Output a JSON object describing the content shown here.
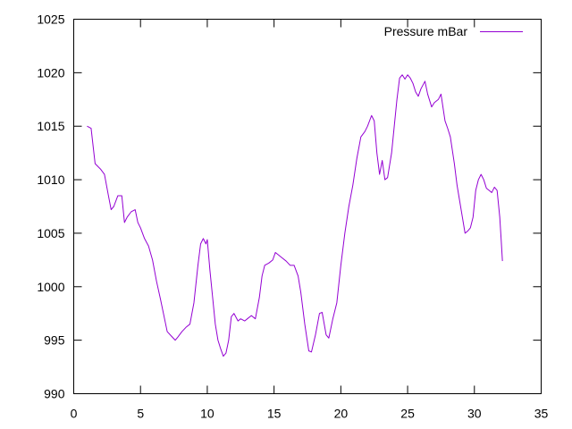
{
  "chart_data": {
    "type": "line",
    "title": "",
    "xlabel": "",
    "ylabel": "",
    "xlim": [
      0,
      35
    ],
    "ylim": [
      990,
      1025
    ],
    "x_ticks": [
      0,
      5,
      10,
      15,
      20,
      25,
      30,
      35
    ],
    "y_ticks": [
      990,
      995,
      1000,
      1005,
      1010,
      1015,
      1020,
      1025
    ],
    "grid": false,
    "legend_position": "top-right",
    "series": [
      {
        "name": "Pressure mBar",
        "color": "#9400d3",
        "points": [
          [
            1.0,
            1015.0
          ],
          [
            1.3,
            1014.8
          ],
          [
            1.6,
            1011.5
          ],
          [
            2.0,
            1011.0
          ],
          [
            2.3,
            1010.5
          ],
          [
            2.6,
            1008.5
          ],
          [
            2.8,
            1007.2
          ],
          [
            3.0,
            1007.5
          ],
          [
            3.3,
            1008.5
          ],
          [
            3.6,
            1008.5
          ],
          [
            3.8,
            1006.0
          ],
          [
            4.0,
            1006.5
          ],
          [
            4.3,
            1007.0
          ],
          [
            4.6,
            1007.2
          ],
          [
            4.8,
            1006.0
          ],
          [
            5.0,
            1005.5
          ],
          [
            5.3,
            1004.5
          ],
          [
            5.6,
            1003.8
          ],
          [
            5.9,
            1002.5
          ],
          [
            6.2,
            1000.5
          ],
          [
            6.5,
            998.8
          ],
          [
            6.8,
            997.0
          ],
          [
            7.0,
            995.8
          ],
          [
            7.3,
            995.4
          ],
          [
            7.6,
            995.0
          ],
          [
            7.8,
            995.3
          ],
          [
            8.1,
            995.8
          ],
          [
            8.4,
            996.2
          ],
          [
            8.7,
            996.5
          ],
          [
            9.0,
            998.5
          ],
          [
            9.3,
            1002.0
          ],
          [
            9.5,
            1004.0
          ],
          [
            9.7,
            1004.5
          ],
          [
            9.9,
            1004.0
          ],
          [
            10.0,
            1004.4
          ],
          [
            10.2,
            1001.5
          ],
          [
            10.4,
            999.0
          ],
          [
            10.6,
            996.5
          ],
          [
            10.8,
            995.0
          ],
          [
            11.0,
            994.2
          ],
          [
            11.2,
            993.5
          ],
          [
            11.4,
            993.8
          ],
          [
            11.6,
            995.0
          ],
          [
            11.8,
            997.2
          ],
          [
            12.0,
            997.5
          ],
          [
            12.3,
            996.8
          ],
          [
            12.5,
            997.0
          ],
          [
            12.8,
            996.8
          ],
          [
            13.0,
            997.0
          ],
          [
            13.3,
            997.3
          ],
          [
            13.6,
            997.0
          ],
          [
            13.9,
            999.0
          ],
          [
            14.1,
            1001.0
          ],
          [
            14.3,
            1002.0
          ],
          [
            14.6,
            1002.2
          ],
          [
            14.9,
            1002.5
          ],
          [
            15.1,
            1003.2
          ],
          [
            15.3,
            1003.0
          ],
          [
            15.6,
            1002.7
          ],
          [
            15.9,
            1002.4
          ],
          [
            16.2,
            1002.0
          ],
          [
            16.5,
            1002.0
          ],
          [
            16.8,
            1001.0
          ],
          [
            17.0,
            999.5
          ],
          [
            17.3,
            996.5
          ],
          [
            17.6,
            994.0
          ],
          [
            17.8,
            993.9
          ],
          [
            18.1,
            995.5
          ],
          [
            18.4,
            997.5
          ],
          [
            18.6,
            997.6
          ],
          [
            18.9,
            995.5
          ],
          [
            19.1,
            995.2
          ],
          [
            19.4,
            997.0
          ],
          [
            19.7,
            998.5
          ],
          [
            20.0,
            1002.0
          ],
          [
            20.3,
            1005.0
          ],
          [
            20.6,
            1007.5
          ],
          [
            20.9,
            1009.5
          ],
          [
            21.2,
            1012.0
          ],
          [
            21.5,
            1014.0
          ],
          [
            21.8,
            1014.5
          ],
          [
            22.0,
            1015.0
          ],
          [
            22.3,
            1016.0
          ],
          [
            22.5,
            1015.5
          ],
          [
            22.7,
            1012.5
          ],
          [
            22.9,
            1010.5
          ],
          [
            23.1,
            1011.8
          ],
          [
            23.3,
            1010.0
          ],
          [
            23.5,
            1010.2
          ],
          [
            23.8,
            1012.5
          ],
          [
            24.0,
            1015.0
          ],
          [
            24.2,
            1017.5
          ],
          [
            24.4,
            1019.5
          ],
          [
            24.6,
            1019.8
          ],
          [
            24.8,
            1019.4
          ],
          [
            25.0,
            1019.8
          ],
          [
            25.2,
            1019.5
          ],
          [
            25.4,
            1019.0
          ],
          [
            25.6,
            1018.2
          ],
          [
            25.8,
            1017.8
          ],
          [
            26.0,
            1018.5
          ],
          [
            26.3,
            1019.2
          ],
          [
            26.5,
            1018.0
          ],
          [
            26.8,
            1016.8
          ],
          [
            27.0,
            1017.2
          ],
          [
            27.3,
            1017.5
          ],
          [
            27.5,
            1018.0
          ],
          [
            27.8,
            1015.5
          ],
          [
            28.0,
            1014.8
          ],
          [
            28.2,
            1014.0
          ],
          [
            28.5,
            1011.5
          ],
          [
            28.7,
            1009.5
          ],
          [
            28.9,
            1008.0
          ],
          [
            29.1,
            1006.5
          ],
          [
            29.3,
            1005.0
          ],
          [
            29.5,
            1005.2
          ],
          [
            29.7,
            1005.5
          ],
          [
            29.9,
            1006.5
          ],
          [
            30.1,
            1009.0
          ],
          [
            30.3,
            1010.0
          ],
          [
            30.5,
            1010.5
          ],
          [
            30.7,
            1010.0
          ],
          [
            30.9,
            1009.2
          ],
          [
            31.1,
            1009.0
          ],
          [
            31.3,
            1008.8
          ],
          [
            31.5,
            1009.3
          ],
          [
            31.7,
            1009.0
          ],
          [
            31.9,
            1006.5
          ],
          [
            32.0,
            1004.5
          ],
          [
            32.1,
            1002.4
          ]
        ]
      }
    ]
  }
}
